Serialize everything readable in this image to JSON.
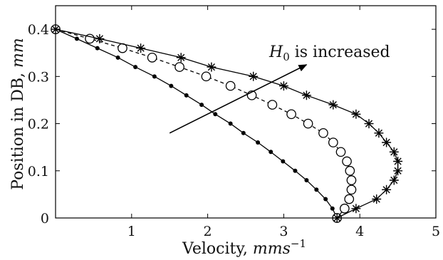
{
  "chart_data": {
    "type": "line",
    "title": "",
    "xlabel": "Velocity, ",
    "xlabel_unit": "mms",
    "xlabel_exp": "−1",
    "ylabel": "Position in DB, ",
    "ylabel_unit": "mm",
    "xlim": [
      0,
      5
    ],
    "ylim": [
      0,
      0.45
    ],
    "xticks": [
      "1",
      "2",
      "3",
      "4",
      "5"
    ],
    "yticks": [
      "0",
      "0.1",
      "0.2",
      "0.3",
      "0.4"
    ],
    "grid": false,
    "annotation": {
      "symbol": "H",
      "subscript": "0",
      "text": " is increased",
      "arrow_from": [
        1.5,
        0.18
      ],
      "arrow_to": [
        3.3,
        0.325
      ]
    },
    "series": [
      {
        "marker": "dot",
        "linestyle": "solid",
        "color": "#000000",
        "points": [
          [
            0.0,
            0.4
          ],
          [
            0.28,
            0.38
          ],
          [
            0.55,
            0.36
          ],
          [
            0.82,
            0.34
          ],
          [
            1.05,
            0.32
          ],
          [
            1.3,
            0.3
          ],
          [
            1.52,
            0.28
          ],
          [
            1.72,
            0.26
          ],
          [
            1.92,
            0.24
          ],
          [
            2.1,
            0.22
          ],
          [
            2.3,
            0.2
          ],
          [
            2.47,
            0.18
          ],
          [
            2.66,
            0.16
          ],
          [
            2.83,
            0.14
          ],
          [
            2.99,
            0.12
          ],
          [
            3.15,
            0.1
          ],
          [
            3.3,
            0.08
          ],
          [
            3.43,
            0.06
          ],
          [
            3.55,
            0.04
          ],
          [
            3.64,
            0.02
          ],
          [
            3.7,
            0.0
          ]
        ]
      },
      {
        "marker": "circle",
        "linestyle": "dashed",
        "color": "#000000",
        "points": [
          [
            0.0,
            0.4
          ],
          [
            0.45,
            0.38
          ],
          [
            0.88,
            0.36
          ],
          [
            1.27,
            0.34
          ],
          [
            1.63,
            0.32
          ],
          [
            1.98,
            0.3
          ],
          [
            2.3,
            0.28
          ],
          [
            2.58,
            0.26
          ],
          [
            2.85,
            0.24
          ],
          [
            3.1,
            0.22
          ],
          [
            3.32,
            0.2
          ],
          [
            3.52,
            0.18
          ],
          [
            3.65,
            0.16
          ],
          [
            3.75,
            0.14
          ],
          [
            3.83,
            0.12
          ],
          [
            3.87,
            0.1
          ],
          [
            3.89,
            0.08
          ],
          [
            3.89,
            0.06
          ],
          [
            3.86,
            0.04
          ],
          [
            3.8,
            0.02
          ],
          [
            3.7,
            0.0
          ]
        ]
      },
      {
        "marker": "star",
        "linestyle": "solid",
        "color": "#000000",
        "points": [
          [
            0.0,
            0.4
          ],
          [
            0.58,
            0.38
          ],
          [
            1.12,
            0.36
          ],
          [
            1.65,
            0.34
          ],
          [
            2.05,
            0.32
          ],
          [
            2.6,
            0.3
          ],
          [
            3.0,
            0.28
          ],
          [
            3.3,
            0.26
          ],
          [
            3.65,
            0.24
          ],
          [
            3.95,
            0.22
          ],
          [
            4.12,
            0.2
          ],
          [
            4.25,
            0.18
          ],
          [
            4.35,
            0.16
          ],
          [
            4.45,
            0.14
          ],
          [
            4.5,
            0.12
          ],
          [
            4.5,
            0.1
          ],
          [
            4.45,
            0.08
          ],
          [
            4.35,
            0.06
          ],
          [
            4.22,
            0.04
          ],
          [
            3.95,
            0.02
          ],
          [
            3.7,
            0.0
          ]
        ]
      }
    ]
  }
}
